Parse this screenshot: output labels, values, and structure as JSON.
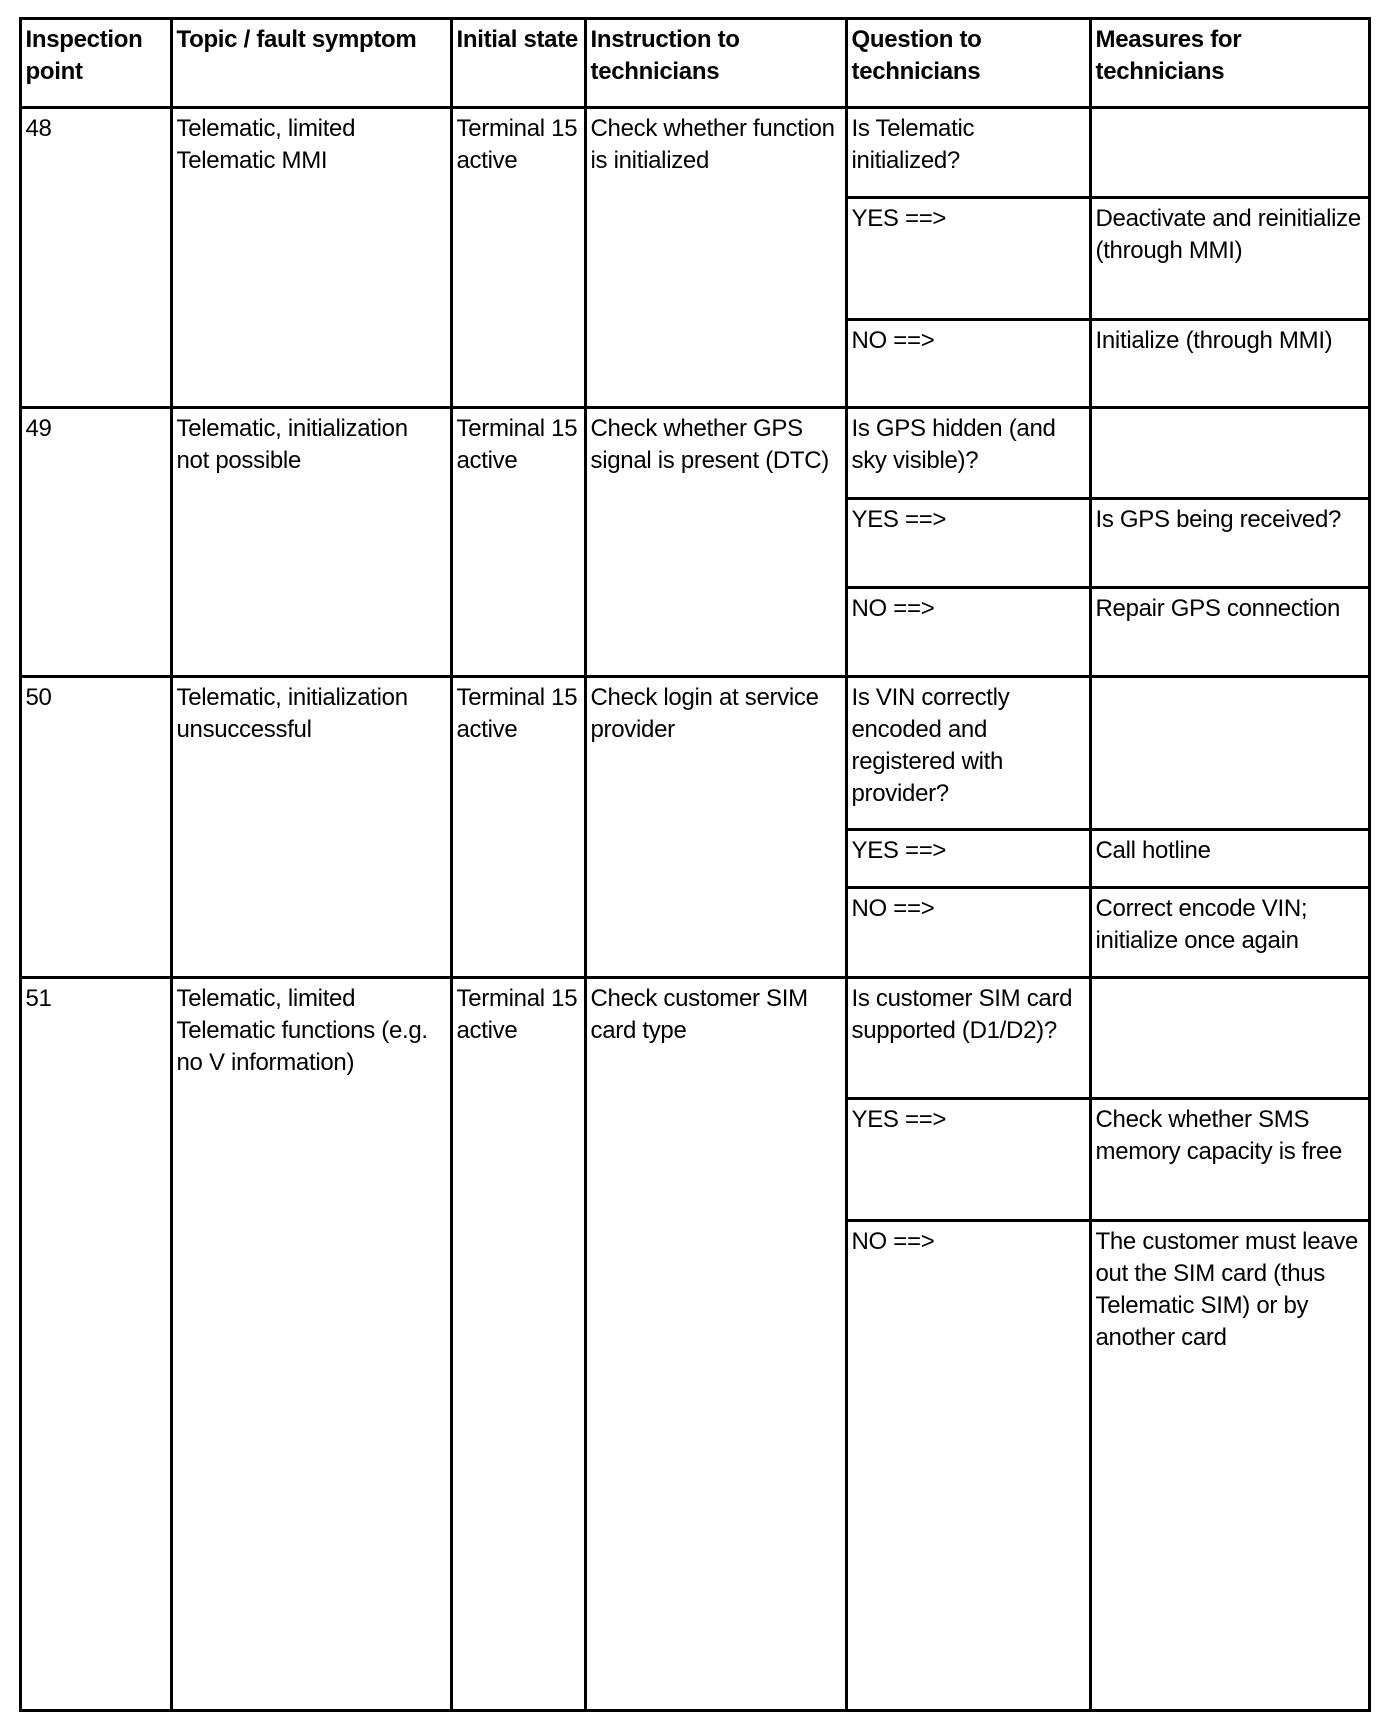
{
  "headers": [
    "Inspection point",
    "Topic / fault symptom",
    "Initial state",
    "Instruction to technicians",
    "Question to technicians",
    "Measures for technicians"
  ],
  "rows": [
    {
      "point": "48",
      "topic": "Telematic, limited Telematic MMI",
      "state": "Terminal 15 active",
      "instruction": "Check whether function is initialized",
      "steps": [
        {
          "question": "Is Telematic initialized?",
          "measure": ""
        },
        {
          "question": "YES ==>",
          "measure": "Deactivate and reinitialize (through MMI)"
        },
        {
          "question": "NO ==>",
          "measure": "Initialize (through MMI)"
        }
      ]
    },
    {
      "point": "49",
      "topic": "Telematic, initialization not possible",
      "state": "Terminal 15 active",
      "instruction": "Check whether GPS signal is present (DTC)",
      "steps": [
        {
          "question": "Is GPS hidden (and sky visible)?",
          "measure": ""
        },
        {
          "question": "YES ==>",
          "measure": "Is GPS being received?"
        },
        {
          "question": "NO ==>",
          "measure": "Repair GPS connection"
        }
      ]
    },
    {
      "point": "50",
      "topic": "Telematic, initialization unsuccessful",
      "state": "Terminal 15 active",
      "instruction": "Check login at service provider",
      "steps": [
        {
          "question": "Is VIN correctly encoded and registered with provider?",
          "measure": ""
        },
        {
          "question": "YES ==>",
          "measure": "Call hotline"
        },
        {
          "question": "NO ==>",
          "measure": "Correct encode VIN; initialize once again"
        }
      ]
    },
    {
      "point": "51",
      "topic": "Telematic, limited Telematic functions (e.g. no V information)",
      "state": "Terminal 15 active",
      "instruction": "Check customer SIM card type",
      "steps": [
        {
          "question": "Is customer SIM card supported (D1/D2)?",
          "measure": ""
        },
        {
          "question": "YES ==>",
          "measure": "Check whether SMS memory capacity is free"
        },
        {
          "question": "NO ==>",
          "measure": "The customer must leave out the SIM card (thus Telematic SIM) or by another card"
        }
      ]
    }
  ]
}
